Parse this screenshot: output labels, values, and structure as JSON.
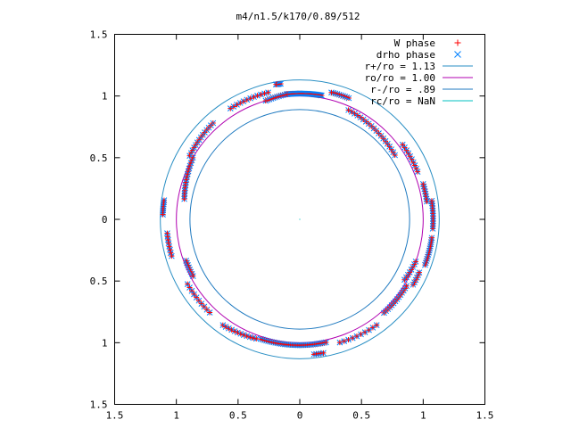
{
  "chart_data": {
    "type": "scatter",
    "title": "m4/n1.5/k170/0.89/512",
    "xlim": [
      -1.5,
      1.5
    ],
    "ylim": [
      -1.5,
      1.5
    ],
    "xticks": [
      {
        "value": -1.5,
        "label": "1.5"
      },
      {
        "value": -1.0,
        "label": "1"
      },
      {
        "value": -0.5,
        "label": "0.5"
      },
      {
        "value": 0,
        "label": "0"
      },
      {
        "value": 0.5,
        "label": "0.5"
      },
      {
        "value": 1.0,
        "label": "1"
      },
      {
        "value": 1.5,
        "label": "1.5"
      }
    ],
    "yticks": [
      {
        "value": -1.5,
        "label": "1.5"
      },
      {
        "value": -1.0,
        "label": "1"
      },
      {
        "value": -0.5,
        "label": "0.5"
      },
      {
        "value": 0,
        "label": "0"
      },
      {
        "value": 0.5,
        "label": "0.5"
      },
      {
        "value": 1.0,
        "label": "1"
      },
      {
        "value": 1.5,
        "label": "1.5"
      }
    ],
    "grid": false,
    "legend_position": "top-right",
    "legend": [
      {
        "label": "W phase",
        "marker": "plus",
        "color": "#ff0000"
      },
      {
        "label": "drho phase",
        "marker": "cross",
        "color": "#0080ff"
      },
      {
        "label": "r+/ro = 1.13",
        "marker": "line",
        "color": "#2a8fc4"
      },
      {
        "label": "ro/ro = 1.00",
        "marker": "line",
        "color": "#b000b0"
      },
      {
        "label": "r-/ro = .89",
        "marker": "line",
        "color": "#1f7ac0"
      },
      {
        "label": "rc/ro = NaN",
        "marker": "line",
        "color": "#00c0c0"
      }
    ],
    "circles": [
      {
        "name": "r+/ro",
        "radius": 1.13,
        "color": "#2a8fc4"
      },
      {
        "name": "ro/ro",
        "radius": 1.0,
        "color": "#b000b0"
      },
      {
        "name": "r-/ro",
        "radius": 0.89,
        "color": "#1f7ac0"
      }
    ],
    "arcs": [
      {
        "r0": 1.02,
        "r1": 1.02,
        "a0": 80,
        "a1": 96,
        "n": 40
      },
      {
        "r0": 1.02,
        "r1": 1.0,
        "a0": 96,
        "a1": 106,
        "n": 12
      },
      {
        "r0": 1.06,
        "r1": 1.06,
        "a0": 68,
        "a1": 76,
        "n": 10
      },
      {
        "r0": 1.11,
        "r1": 1.11,
        "a0": 98,
        "a1": 100,
        "n": 5
      },
      {
        "r0": 1.06,
        "r1": 1.06,
        "a0": 104,
        "a1": 122,
        "n": 12
      },
      {
        "r0": 1.05,
        "r1": 1.03,
        "a0": 132,
        "a1": 150,
        "n": 14
      },
      {
        "r0": 1.0,
        "r1": 0.95,
        "a0": 150,
        "a1": 170,
        "n": 16
      },
      {
        "r0": 1.11,
        "r1": 1.11,
        "a0": 172,
        "a1": 178,
        "n": 8
      },
      {
        "r0": 1.08,
        "r1": 1.08,
        "a0": 186,
        "a1": 196,
        "n": 8
      },
      {
        "r0": 0.98,
        "r1": 0.98,
        "a0": 200,
        "a1": 208,
        "n": 8
      },
      {
        "r0": 1.05,
        "r1": 1.05,
        "a0": 210,
        "a1": 226,
        "n": 10
      },
      {
        "r0": 1.06,
        "r1": 1.03,
        "a0": 234,
        "a1": 250,
        "n": 12
      },
      {
        "r0": 1.02,
        "r1": 1.02,
        "a0": 252,
        "a1": 282,
        "n": 36
      },
      {
        "r0": 1.1,
        "r1": 1.1,
        "a0": 276,
        "a1": 280,
        "n": 5
      },
      {
        "r0": 1.05,
        "r1": 1.06,
        "a0": 288,
        "a1": 306,
        "n": 10
      },
      {
        "r0": 1.02,
        "r1": 1.02,
        "a0": 312,
        "a1": 328,
        "n": 14
      },
      {
        "r0": 0.98,
        "r1": 1.0,
        "a0": 330,
        "a1": 340,
        "n": 8
      },
      {
        "r0": 1.06,
        "r1": 1.06,
        "a0": 330,
        "a1": 336,
        "n": 6
      },
      {
        "r0": 1.08,
        "r1": 1.08,
        "a0": 340,
        "a1": 352,
        "n": 14
      },
      {
        "r0": 1.08,
        "r1": 1.08,
        "a0": 356,
        "a1": 368,
        "n": 12
      },
      {
        "r0": 1.04,
        "r1": 1.04,
        "a0": 8,
        "a1": 16,
        "n": 8
      },
      {
        "r0": 1.03,
        "r1": 1.03,
        "a0": 22,
        "a1": 36,
        "n": 10
      },
      {
        "r0": 0.93,
        "r1": 0.97,
        "a0": 34,
        "a1": 66,
        "n": 20
      }
    ]
  }
}
